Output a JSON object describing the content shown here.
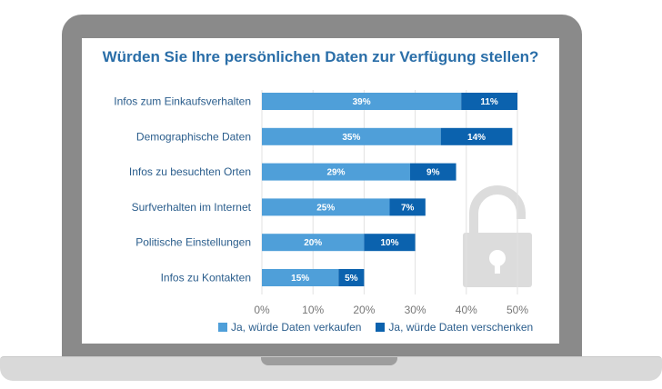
{
  "chart_data": {
    "type": "bar",
    "orientation": "horizontal",
    "stacked": true,
    "title": "Würden Sie Ihre persönlichen Daten zur Verfügung stellen?",
    "categories": [
      "Infos zum Einkaufsverhalten",
      "Demographische Daten",
      "Infos zu besuchten Orten",
      "Surfverhalten im Internet",
      "Politische Einstellungen",
      "Infos zu Kontakten"
    ],
    "series": [
      {
        "name": "Ja, würde Daten verkaufen",
        "color": "#4f9fd9",
        "values": [
          39,
          35,
          29,
          25,
          20,
          15
        ]
      },
      {
        "name": "Ja, würde Daten verschenken",
        "color": "#0b62ae",
        "values": [
          11,
          14,
          9,
          7,
          10,
          5
        ]
      }
    ],
    "xlim": [
      0,
      50
    ],
    "ticks": [
      0,
      10,
      20,
      30,
      40,
      50
    ],
    "unit": "%",
    "grid": true,
    "legend_position": "bottom"
  },
  "icons": {
    "lock": "open-padlock-icon"
  }
}
